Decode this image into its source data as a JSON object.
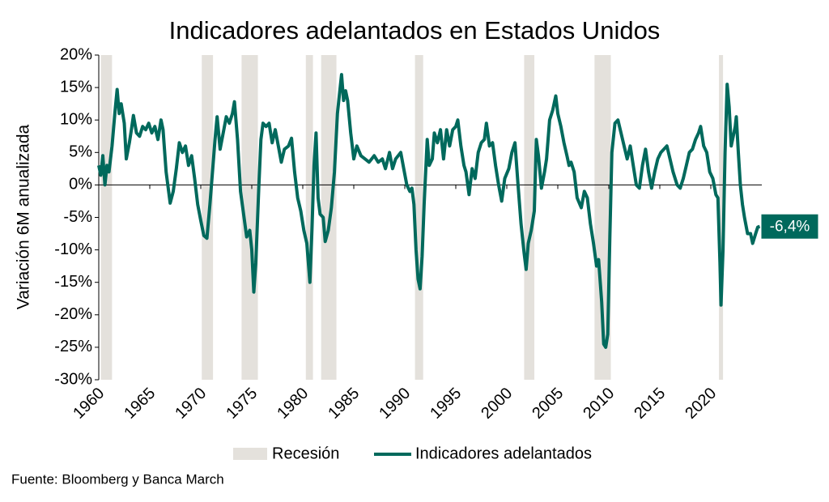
{
  "chart_data": {
    "type": "line",
    "title": "Indicadores adelantados en Estados Unidos",
    "y_label": "Variación  6M anualizada",
    "source": "Fuente: Bloomberg y Banca March",
    "xlim": [
      1960,
      2025
    ],
    "xticks": [
      1960,
      1965,
      1970,
      1975,
      1980,
      1985,
      1990,
      1995,
      2000,
      2005,
      2010,
      2015,
      2020
    ],
    "ylim": [
      -30,
      20
    ],
    "yticks": [
      {
        "value": 20,
        "label": "20%"
      },
      {
        "value": 15,
        "label": "15%"
      },
      {
        "value": 10,
        "label": "10%"
      },
      {
        "value": 5,
        "label": "5%"
      },
      {
        "value": 0,
        "label": "0%"
      },
      {
        "value": -5,
        "label": "-5%"
      },
      {
        "value": -10,
        "label": "-10%"
      },
      {
        "value": -15,
        "label": "-15%"
      },
      {
        "value": -20,
        "label": "-20%"
      },
      {
        "value": -25,
        "label": "-25%"
      },
      {
        "value": -30,
        "label": "-30%"
      }
    ],
    "bands": {
      "name": "Recesión",
      "color": "#e4e1dc",
      "ranges": [
        [
          1960.2,
          1961.3
        ],
        [
          1970.1,
          1971.2
        ],
        [
          1974.0,
          1975.6
        ],
        [
          1980.3,
          1981.0
        ],
        [
          1981.8,
          1983.3
        ],
        [
          1991.0,
          1991.8
        ],
        [
          2001.7,
          2002.7
        ],
        [
          2008.6,
          2010.2
        ],
        [
          2020.8,
          2021.2
        ]
      ]
    },
    "x": [
      1960.0,
      1960.2,
      1960.4,
      1960.6,
      1960.8,
      1961.0,
      1961.3,
      1961.6,
      1961.8,
      1962.0,
      1962.2,
      1962.5,
      1962.7,
      1963.0,
      1963.2,
      1963.4,
      1963.7,
      1964.0,
      1964.3,
      1964.6,
      1964.9,
      1965.2,
      1965.5,
      1965.8,
      1966.1,
      1966.3,
      1966.6,
      1967.0,
      1967.3,
      1967.6,
      1967.9,
      1968.2,
      1968.5,
      1968.8,
      1969.1,
      1969.4,
      1969.7,
      1970.0,
      1970.3,
      1970.6,
      1970.9,
      1971.2,
      1971.4,
      1971.6,
      1971.9,
      1972.2,
      1972.5,
      1972.8,
      1973.1,
      1973.3,
      1973.6,
      1973.9,
      1974.2,
      1974.5,
      1974.8,
      1975.0,
      1975.2,
      1975.4,
      1975.7,
      1975.9,
      1976.1,
      1976.4,
      1976.7,
      1977.0,
      1977.3,
      1977.6,
      1977.9,
      1978.2,
      1978.6,
      1978.9,
      1979.2,
      1979.5,
      1979.8,
      1980.1,
      1980.4,
      1980.7,
      1980.9,
      1981.1,
      1981.3,
      1981.5,
      1981.7,
      1982.0,
      1982.2,
      1982.5,
      1982.8,
      1983.1,
      1983.4,
      1983.8,
      1984.0,
      1984.2,
      1984.4,
      1984.7,
      1985.0,
      1985.3,
      1985.7,
      1986.1,
      1986.5,
      1987.0,
      1987.4,
      1987.8,
      1988.1,
      1988.5,
      1988.8,
      1989.1,
      1989.6,
      1989.9,
      1990.2,
      1990.5,
      1990.7,
      1990.9,
      1991.1,
      1991.3,
      1991.5,
      1991.7,
      1991.9,
      1992.2,
      1992.4,
      1992.7,
      1992.9,
      1993.2,
      1993.5,
      1993.8,
      1994.1,
      1994.4,
      1994.7,
      1995.0,
      1995.2,
      1995.5,
      1995.8,
      1996.0,
      1996.3,
      1996.6,
      1996.9,
      1997.2,
      1997.5,
      1997.8,
      1998.0,
      1998.3,
      1998.6,
      1998.9,
      1999.2,
      1999.5,
      1999.8,
      2000.2,
      2000.5,
      2000.8,
      2001.1,
      2001.4,
      2001.7,
      2001.9,
      2002.1,
      2002.4,
      2002.7,
      2002.9,
      2003.1,
      2003.4,
      2003.7,
      2003.9,
      2004.2,
      2004.5,
      2004.8,
      2005.0,
      2005.3,
      2005.6,
      2005.9,
      2006.1,
      2006.3,
      2006.6,
      2006.9,
      2007.3,
      2007.6,
      2007.9,
      2008.2,
      2008.5,
      2008.8,
      2009.0,
      2009.3,
      2009.5,
      2009.7,
      2009.9,
      2010.1,
      2010.3,
      2010.6,
      2010.9,
      2011.2,
      2011.5,
      2011.8,
      2012.1,
      2012.4,
      2012.7,
      2013.0,
      2013.3,
      2013.6,
      2013.9,
      2014.2,
      2014.5,
      2014.8,
      2015.1,
      2015.4,
      2015.7,
      2016.0,
      2016.3,
      2016.7,
      2017.0,
      2017.3,
      2017.6,
      2017.9,
      2018.2,
      2018.5,
      2018.8,
      2019.0,
      2019.3,
      2019.6,
      2019.9,
      2020.2,
      2020.5,
      2020.7,
      2020.9,
      2021.0,
      2021.2,
      2021.4,
      2021.6,
      2021.8,
      2022.0,
      2022.2,
      2022.4,
      2022.5,
      2022.7,
      2022.9,
      2023.1,
      2023.3,
      2023.6,
      2023.9,
      2024.1,
      2024.4,
      2024.6,
      2024.8
    ],
    "series": [
      {
        "name": "Indicadores adelantados",
        "color": "#00695c",
        "values": [
          3,
          1.5,
          4.5,
          0,
          3,
          2,
          6,
          11.5,
          14.7,
          11,
          12.5,
          9.5,
          4,
          6.5,
          8.5,
          10.7,
          8,
          7.5,
          9,
          8.5,
          9.5,
          8,
          9,
          7,
          10,
          8.5,
          2,
          -2.8,
          -1,
          2.5,
          6.5,
          5,
          6,
          3,
          4.5,
          1,
          -3,
          -5.5,
          -7.8,
          -8.2,
          -3,
          3,
          7,
          10.5,
          5.5,
          8,
          10.5,
          9.5,
          11,
          12.8,
          7,
          -1,
          -4.5,
          -8,
          -7,
          -10,
          -16.5,
          -12,
          0,
          7,
          9.5,
          9,
          9.5,
          6.5,
          8.5,
          6,
          3.5,
          5.5,
          6,
          7.2,
          2,
          -2,
          -4,
          -7,
          -9,
          -15,
          -7,
          3,
          8,
          -2,
          -4.5,
          -5,
          -8.7,
          -7,
          -3.5,
          2,
          11,
          17,
          13,
          14.5,
          13,
          8,
          4,
          6,
          4.5,
          4,
          3.5,
          4.5,
          3.5,
          4,
          2.5,
          5,
          2.5,
          4,
          5,
          2.5,
          0,
          -1,
          -0.5,
          -3,
          -10,
          -14.5,
          -16,
          -11,
          -3,
          7,
          3,
          4,
          8,
          6.5,
          8.5,
          4,
          8.5,
          6,
          8.5,
          9,
          10,
          6,
          3,
          2,
          -1.5,
          2.5,
          1,
          5,
          6.5,
          7,
          9.5,
          6,
          6.5,
          3,
          0,
          -2.5,
          1,
          2.5,
          5,
          6.5,
          0,
          -6,
          -10.5,
          -13,
          -9,
          -7,
          -4,
          7,
          4.5,
          -0.5,
          2,
          4,
          10,
          11.5,
          13.7,
          11,
          9,
          6.5,
          4.5,
          3,
          3.5,
          2,
          -2,
          -3.5,
          -1,
          -2,
          -6,
          -9,
          -12.5,
          -11.5,
          -18,
          -24.5,
          -25,
          -23,
          -8,
          5,
          9.5,
          10,
          8,
          6,
          4,
          6,
          3,
          0,
          -0.5,
          3,
          5.5,
          2,
          -0.5,
          2,
          4,
          5,
          5.5,
          6,
          4,
          2,
          0,
          -0.5,
          1,
          3,
          5,
          5.5,
          7,
          8,
          9,
          6,
          5,
          2,
          1,
          -1.5,
          -2,
          -12,
          -18.5,
          -10,
          5,
          15.5,
          12,
          6,
          7.5,
          9,
          10.5,
          5,
          0,
          -3,
          -5,
          -7.5,
          -7.5,
          -9,
          -7.5,
          -6.5,
          -6.4
        ]
      }
    ],
    "annotation": {
      "x": 2024.8,
      "value": -6.4,
      "label": "-6,4%"
    }
  }
}
